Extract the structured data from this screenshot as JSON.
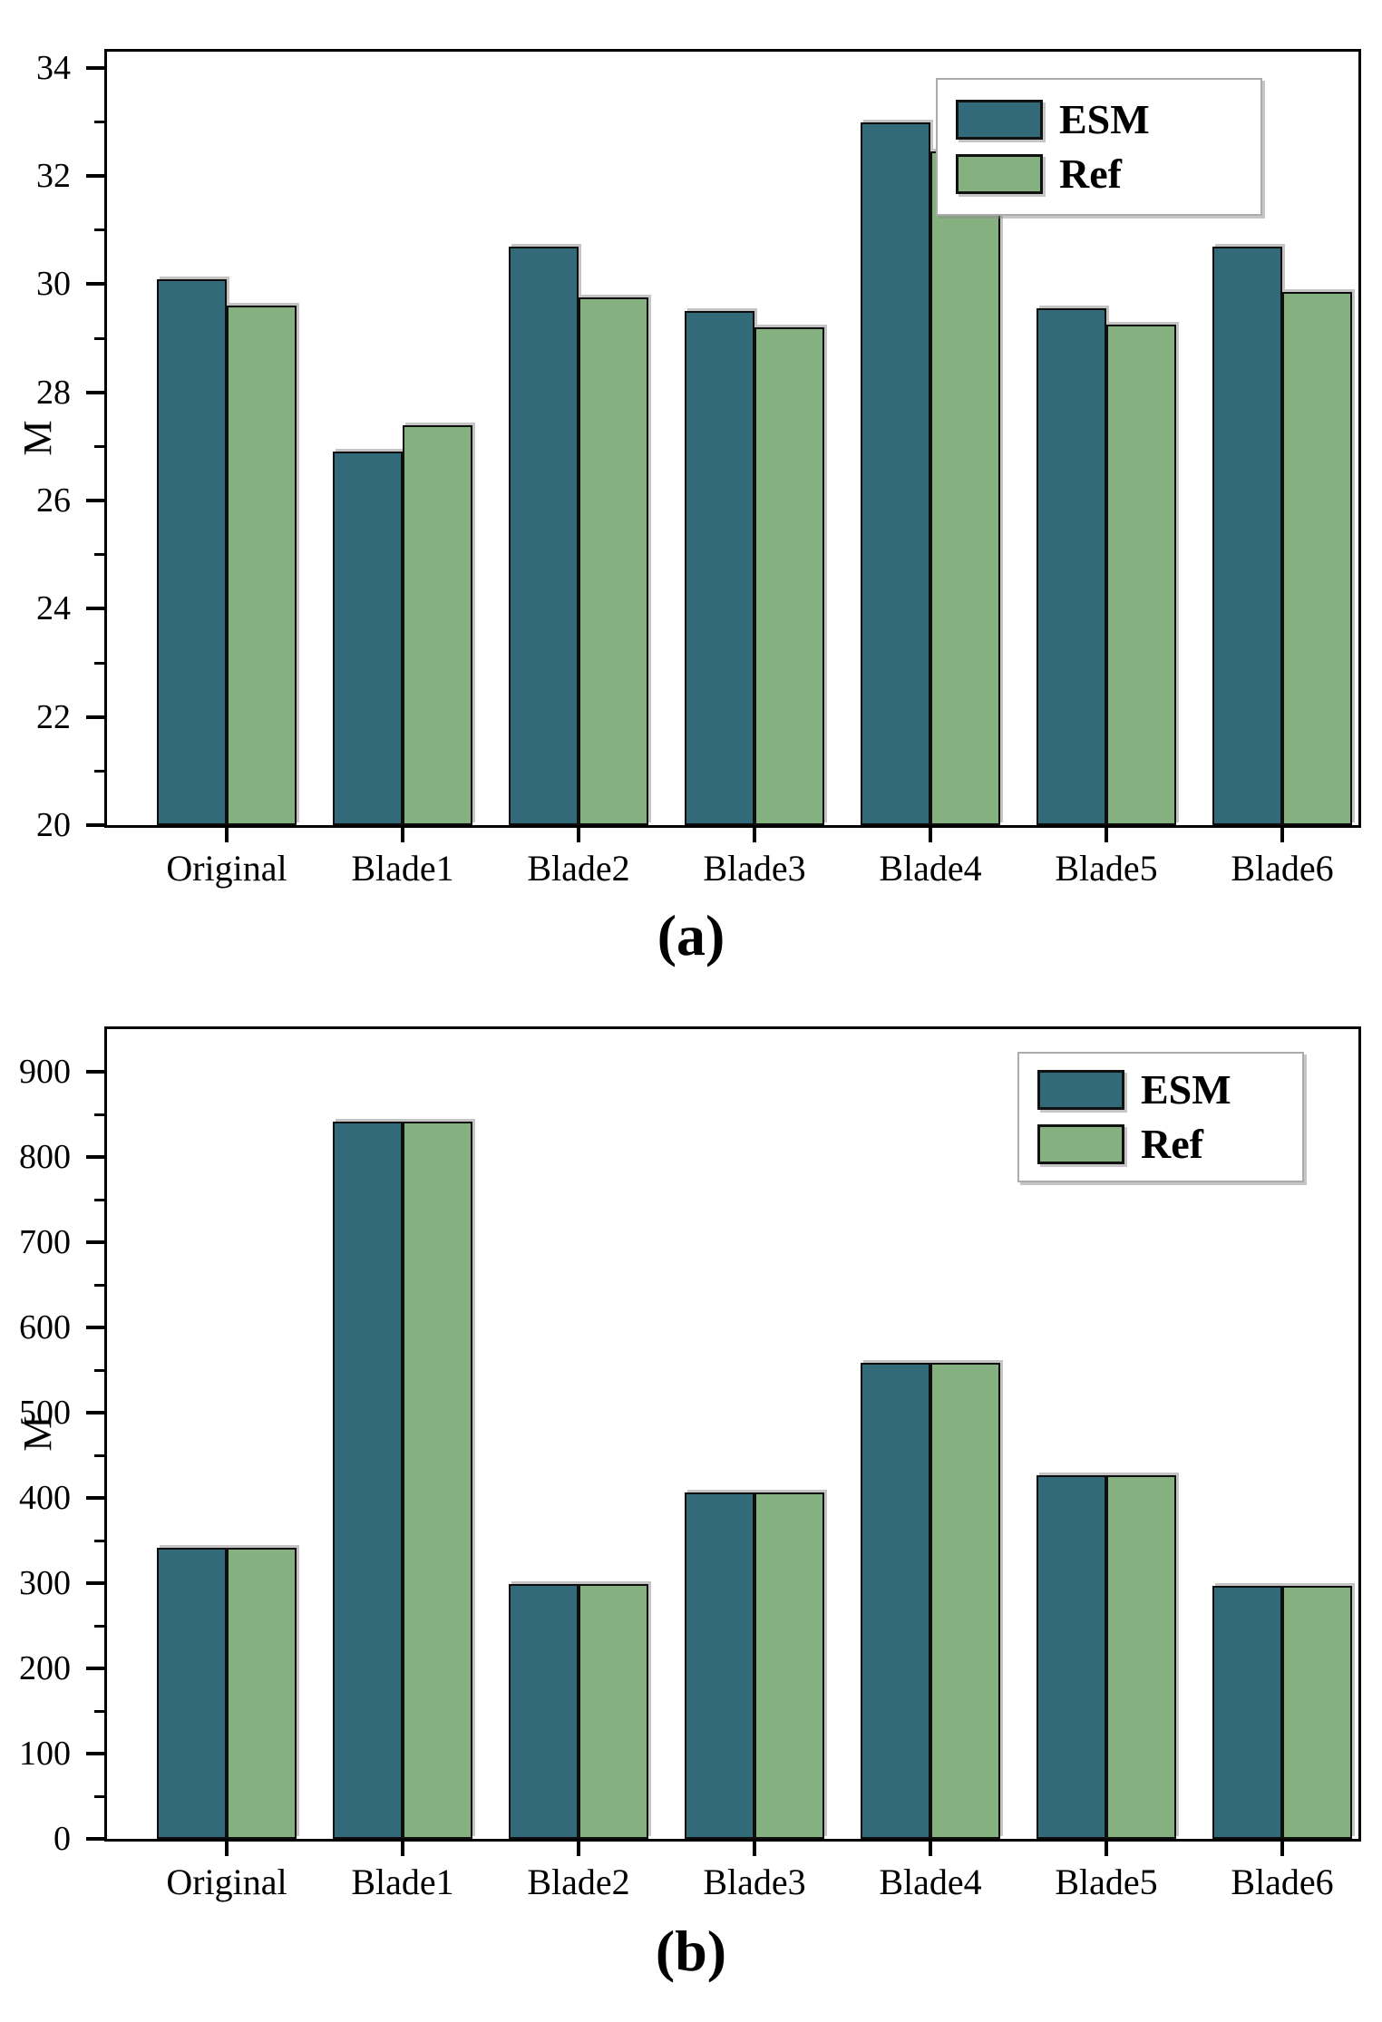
{
  "figure": {
    "background": "#ffffff",
    "frame_color": "#000000",
    "bar_colors": {
      "esm": "#336a79",
      "ref": "#85b07f"
    },
    "panel_a_caption": "(a)",
    "panel_b_caption": "(b)"
  },
  "chart_data": [
    {
      "type": "bar",
      "title": "(a)",
      "xlabel": "",
      "ylabel": "M",
      "categories": [
        "Original",
        "Blade1",
        "Blade2",
        "Blade3",
        "Blade4",
        "Blade5",
        "Blade6"
      ],
      "series": [
        {
          "name": "ESM",
          "color": "#336a79",
          "values": [
            30.1,
            26.9,
            30.7,
            29.5,
            33.0,
            29.55,
            30.7
          ]
        },
        {
          "name": "Ref",
          "color": "#85b07f",
          "values": [
            29.6,
            27.4,
            29.75,
            29.2,
            32.45,
            29.25,
            29.85
          ]
        }
      ],
      "ylim": [
        20,
        34.3
      ],
      "yticks": [
        20,
        22,
        24,
        26,
        28,
        30,
        32,
        34
      ],
      "minor_tick_step": 1,
      "grid": false,
      "legend_position": "top-right"
    },
    {
      "type": "bar",
      "title": "(b)",
      "xlabel": "",
      "ylabel": "M",
      "categories": [
        "Original",
        "Blade1",
        "Blade2",
        "Blade3",
        "Blade4",
        "Blade5",
        "Blade6"
      ],
      "series": [
        {
          "name": "ESM",
          "color": "#336a79",
          "values": [
            342,
            842,
            299,
            406,
            558,
            427,
            297
          ]
        },
        {
          "name": "Ref",
          "color": "#85b07f",
          "values": [
            342,
            842,
            299,
            406,
            558,
            427,
            297
          ]
        }
      ],
      "ylim": [
        0,
        950
      ],
      "yticks": [
        0,
        100,
        200,
        300,
        400,
        500,
        600,
        700,
        800,
        900
      ],
      "minor_tick_step": 50,
      "grid": false,
      "legend_position": "top-right"
    }
  ]
}
